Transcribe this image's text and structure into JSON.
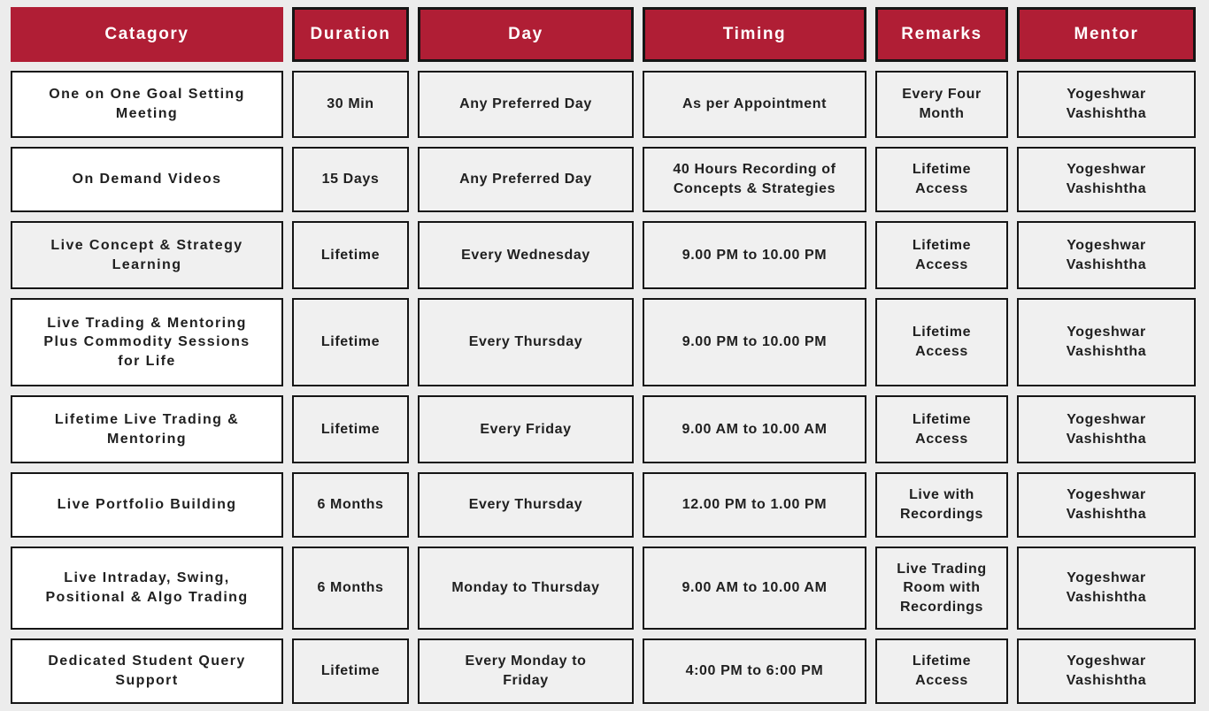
{
  "table": {
    "headers": [
      {
        "label": "Catagory"
      },
      {
        "label": "Duration"
      },
      {
        "label": "Day"
      },
      {
        "label": "Timing"
      },
      {
        "label": "Remarks"
      },
      {
        "label": "Mentor"
      }
    ],
    "rows": [
      {
        "category": "One on One Goal Setting\nMeeting",
        "duration": "30 Min",
        "day": "Any Preferred Day",
        "timing": "As per Appointment",
        "remarks": "Every Four\nMonth",
        "mentor": "Yogeshwar\nVashishtha"
      },
      {
        "category": "On Demand Videos",
        "duration": "15 Days",
        "day": "Any Preferred Day",
        "timing": "40 Hours Recording of\nConcepts & Strategies",
        "remarks": "Lifetime\nAccess",
        "mentor": "Yogeshwar\nVashishtha"
      },
      {
        "category": "Live Concept & Strategy\nLearning",
        "duration": "Lifetime",
        "day": "Every Wednesday",
        "timing": "9.00 PM to 10.00 PM",
        "remarks": "Lifetime\nAccess",
        "mentor": "Yogeshwar\nVashishtha"
      },
      {
        "category": "Live Trading & Mentoring\nPlus Commodity Sessions\nfor Life",
        "duration": "Lifetime",
        "day": "Every Thursday",
        "timing": "9.00 PM to 10.00 PM",
        "remarks": "Lifetime\nAccess",
        "mentor": "Yogeshwar\nVashishtha"
      },
      {
        "category": "Lifetime Live Trading &\nMentoring",
        "duration": "Lifetime",
        "day": "Every Friday",
        "timing": "9.00 AM to 10.00 AM",
        "remarks": "Lifetime\nAccess",
        "mentor": "Yogeshwar\nVashishtha"
      },
      {
        "category": "Live Portfolio Building",
        "duration": "6 Months",
        "day": "Every Thursday",
        "timing": "12.00 PM to 1.00 PM",
        "remarks": "Live with\nRecordings",
        "mentor": "Yogeshwar\nVashishtha"
      },
      {
        "category": "Live Intraday, Swing,\nPositional & Algo Trading",
        "duration": "6 Months",
        "day": "Monday to Thursday",
        "timing": "9.00 AM to 10.00 AM",
        "remarks": "Live Trading\nRoom with\nRecordings",
        "mentor": "Yogeshwar\nVashishtha"
      },
      {
        "category": "Dedicated Student Query\nSupport",
        "duration": "Lifetime",
        "day": "Every Monday to\nFriday",
        "timing": "4:00 PM to 6:00 PM",
        "remarks": "Lifetime\nAccess",
        "mentor": "Yogeshwar\nVashishtha"
      }
    ]
  },
  "colors": {
    "header_bg": "#B01E35",
    "header_text": "#FFFFFF",
    "cell_bg_gray": "#F0F0F0",
    "cell_bg_white": "#FFFFFF",
    "border": "#151515",
    "page_bg": "#ECECEC",
    "body_text": "#202020"
  },
  "chart_data": {
    "type": "table",
    "title": "Catagory schedule table",
    "columns": [
      "Catagory",
      "Duration",
      "Day",
      "Timing",
      "Remarks",
      "Mentor"
    ],
    "rows": [
      [
        "One on One Goal Setting Meeting",
        "30 Min",
        "Any Preferred Day",
        "As per Appointment",
        "Every Four Month",
        "Yogeshwar Vashishtha"
      ],
      [
        "On Demand Videos",
        "15 Days",
        "Any Preferred Day",
        "40 Hours Recording of Concepts & Strategies",
        "Lifetime Access",
        "Yogeshwar Vashishtha"
      ],
      [
        "Live Concept & Strategy Learning",
        "Lifetime",
        "Every Wednesday",
        "9.00 PM to 10.00 PM",
        "Lifetime Access",
        "Yogeshwar Vashishtha"
      ],
      [
        "Live Trading & Mentoring Plus Commodity Sessions for Life",
        "Lifetime",
        "Every Thursday",
        "9.00 PM to 10.00 PM",
        "Lifetime Access",
        "Yogeshwar Vashishtha"
      ],
      [
        "Lifetime Live Trading & Mentoring",
        "Lifetime",
        "Every Friday",
        "9.00 AM to 10.00 AM",
        "Lifetime Access",
        "Yogeshwar Vashishtha"
      ],
      [
        "Live Portfolio Building",
        "6 Months",
        "Every Thursday",
        "12.00 PM to 1.00 PM",
        "Live with Recordings",
        "Yogeshwar Vashishtha"
      ],
      [
        "Live Intraday, Swing, Positional & Algo Trading",
        "6 Months",
        "Monday to Thursday",
        "9.00 AM to 10.00 AM",
        "Live Trading Room with Recordings",
        "Yogeshwar Vashishtha"
      ],
      [
        "Dedicated Student Query Support",
        "Lifetime",
        "Every Monday to Friday",
        "4:00 PM to 6:00 PM",
        "Lifetime Access",
        "Yogeshwar Vashishtha"
      ]
    ],
    "layout": {
      "header_style": "crimson bar, white bold text",
      "grid": "separated bordered cells on light gray background"
    }
  }
}
